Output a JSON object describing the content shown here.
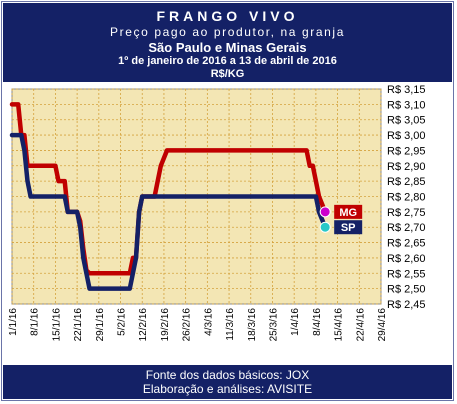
{
  "chart_data": {
    "type": "line",
    "title": "FRANGO VIVO",
    "subtitle_1": "Preço pago ao produtor, na granja",
    "subtitle_2": "São Paulo e Minas Gerais",
    "period": "1º de janeiro de 2016 a 13 de abril de 2016",
    "unit": "R$/KG",
    "ylim": [
      2.45,
      3.15
    ],
    "y_ticks": [
      "R$ 3,15",
      "R$ 3,10",
      "R$ 3,05",
      "R$ 3,00",
      "R$ 2,95",
      "R$ 2,90",
      "R$ 2,85",
      "R$ 2,80",
      "R$ 2,75",
      "R$ 2,70",
      "R$ 2,65",
      "R$ 2,60",
      "R$ 2,55",
      "R$ 2,50",
      "R$ 2,45"
    ],
    "x_ticks": [
      "1/1/16",
      "8/1/16",
      "15/1/16",
      "22/1/16",
      "29/1/16",
      "5/2/16",
      "12/2/16",
      "19/2/16",
      "26/2/16",
      "4/3/16",
      "11/3/16",
      "18/3/16",
      "25/3/16",
      "1/4/16",
      "8/4/16",
      "15/4/16",
      "22/4/16",
      "29/4/16"
    ],
    "x_range_days": [
      0,
      119
    ],
    "grid": true,
    "series": [
      {
        "name": "MG",
        "color": "#c00000",
        "marker_color": "#cc00cc",
        "points": [
          [
            0,
            3.1
          ],
          [
            2,
            3.1
          ],
          [
            3,
            3.0
          ],
          [
            4,
            3.0
          ],
          [
            5,
            2.9
          ],
          [
            14,
            2.9
          ],
          [
            15,
            2.85
          ],
          [
            17,
            2.85
          ],
          [
            18,
            2.75
          ],
          [
            21,
            2.75
          ],
          [
            22,
            2.72
          ],
          [
            23,
            2.63
          ],
          [
            24,
            2.56
          ],
          [
            25,
            2.55
          ],
          [
            38,
            2.55
          ],
          [
            39,
            2.6
          ],
          [
            40,
            2.6
          ],
          [
            41,
            2.75
          ],
          [
            42,
            2.8
          ],
          [
            46,
            2.8
          ],
          [
            47,
            2.85
          ],
          [
            48,
            2.9
          ],
          [
            50,
            2.95
          ],
          [
            95,
            2.95
          ],
          [
            96,
            2.9
          ],
          [
            97,
            2.9
          ],
          [
            98,
            2.85
          ],
          [
            99,
            2.8
          ],
          [
            101,
            2.75
          ]
        ]
      },
      {
        "name": "SP",
        "color": "#142166",
        "marker_color": "#28c8c8",
        "points": [
          [
            0,
            3.0
          ],
          [
            3,
            3.0
          ],
          [
            4,
            2.95
          ],
          [
            5,
            2.85
          ],
          [
            6,
            2.8
          ],
          [
            17,
            2.8
          ],
          [
            18,
            2.75
          ],
          [
            21,
            2.75
          ],
          [
            22,
            2.7
          ],
          [
            23,
            2.6
          ],
          [
            25,
            2.5
          ],
          [
            38,
            2.5
          ],
          [
            39,
            2.55
          ],
          [
            40,
            2.6
          ],
          [
            41,
            2.75
          ],
          [
            42,
            2.8
          ],
          [
            98,
            2.8
          ],
          [
            99,
            2.75
          ],
          [
            101,
            2.7
          ]
        ]
      }
    ]
  },
  "footer": {
    "source": "Fonte dos dados básicos: JOX",
    "credit": "Elaboração e análises: AVISITE"
  }
}
